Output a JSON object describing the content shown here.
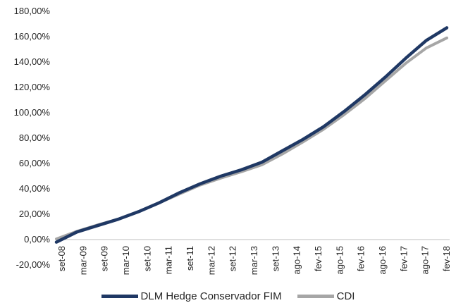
{
  "chart_data": {
    "type": "line",
    "title": "",
    "xlabel": "",
    "ylabel": "",
    "ylim": [
      -20,
      180
    ],
    "yticks": [
      "-20,00%",
      "0,00%",
      "20,00%",
      "40,00%",
      "60,00%",
      "80,00%",
      "100,00%",
      "120,00%",
      "140,00%",
      "160,00%",
      "180,00%"
    ],
    "x_ticks": [
      "set-08",
      "mar-09",
      "set-09",
      "mar-10",
      "set-10",
      "mar-11",
      "set-11",
      "mar-12",
      "set-12",
      "mar-13",
      "set-13",
      "ago-14",
      "fev-15",
      "ago-15",
      "fev-16",
      "ago-16",
      "fev-17",
      "ago-17",
      "fev-18"
    ],
    "grid": false,
    "legend_position": "bottom",
    "series": [
      {
        "name": "DLM Hedge Conservador FIM",
        "color": "#1f3864",
        "values": [
          -2,
          6,
          11,
          16,
          22,
          29,
          37,
          44,
          50,
          55,
          61,
          70,
          79,
          89,
          101,
          114,
          128,
          143,
          157,
          167
        ]
      },
      {
        "name": "CDI",
        "color": "#a6a6a6",
        "values": [
          0.5,
          6.5,
          11.5,
          16,
          22,
          29,
          36,
          43,
          48.5,
          53.5,
          59,
          67.5,
          77,
          87,
          98.5,
          111,
          125,
          139,
          151,
          159
        ]
      }
    ]
  }
}
